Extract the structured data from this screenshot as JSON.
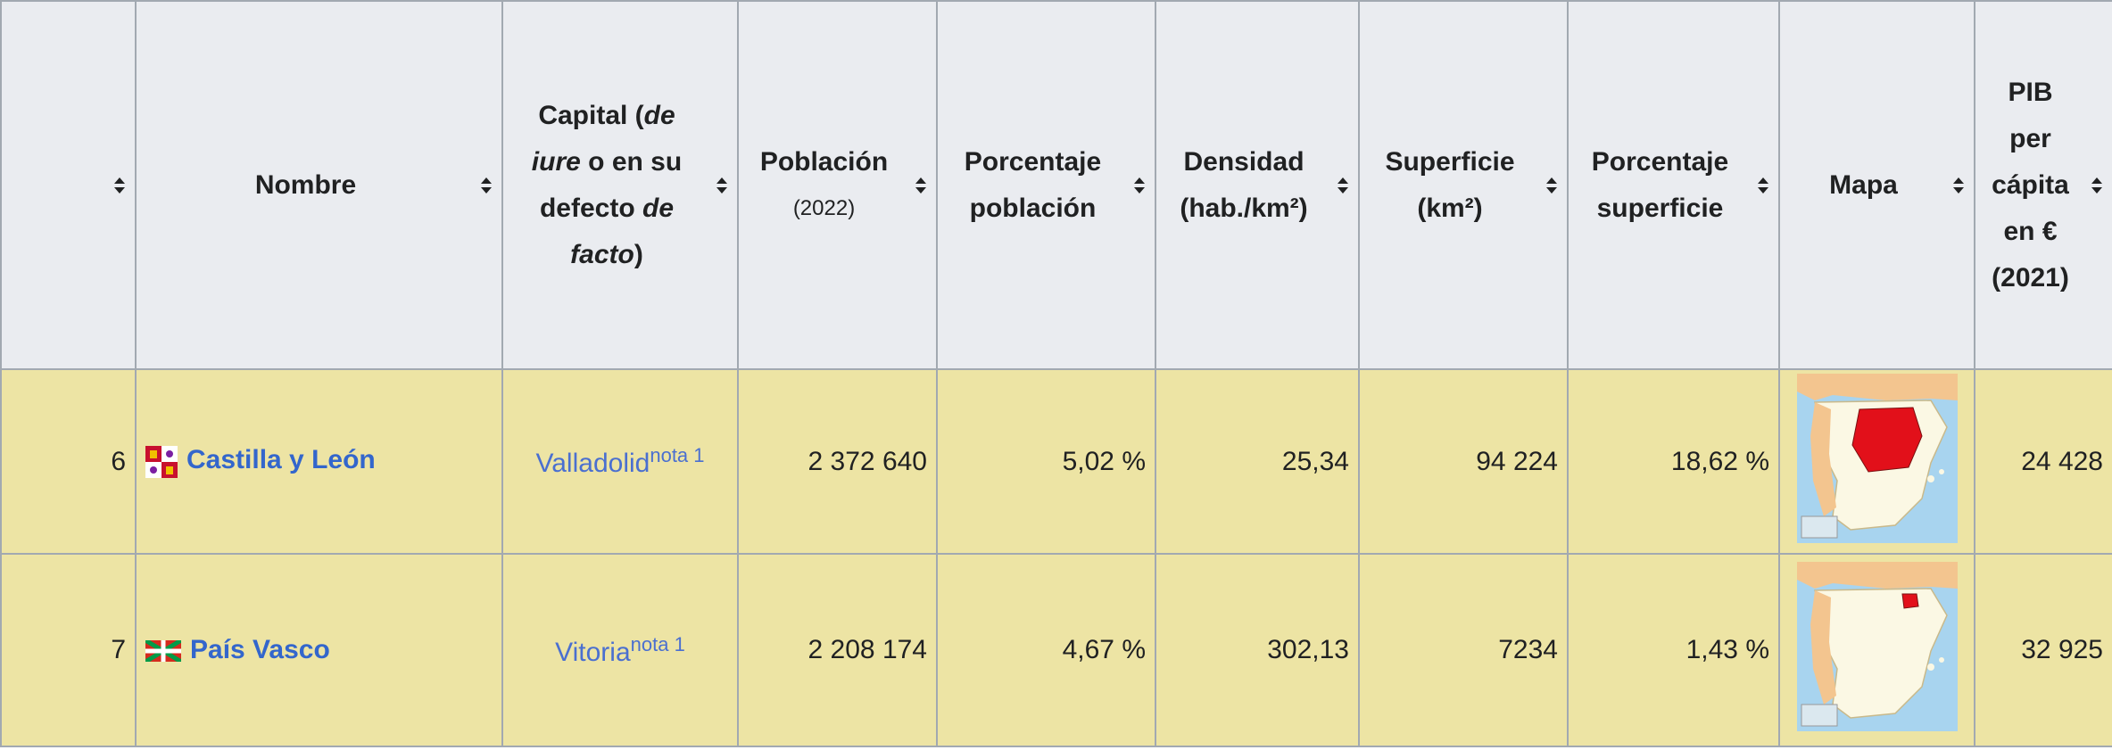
{
  "header": {
    "columns": [
      [
        {
          "text": "Nombre"
        }
      ],
      [
        {
          "text": "Capital ("
        },
        {
          "text": "de iure",
          "style": "italic"
        },
        {
          "text": " o en su defecto "
        },
        {
          "text": "de facto",
          "style": "italic"
        },
        {
          "text": ")"
        }
      ],
      [
        {
          "text": "Población"
        },
        {
          "text": "(2022)",
          "style": "small-line"
        }
      ],
      [
        {
          "text": "Porcentaje población"
        }
      ],
      [
        {
          "text": "Densidad"
        },
        {
          "text": "(hab./km²)",
          "style": "line"
        }
      ],
      [
        {
          "text": "Superficie"
        },
        {
          "text": "(km²)",
          "style": "line"
        }
      ],
      [
        {
          "text": "Porcentaje superficie"
        }
      ],
      [
        {
          "text": "Mapa"
        }
      ],
      [
        {
          "text": "PIB per cápita en € (2021)"
        }
      ]
    ]
  },
  "table": {
    "rows": [
      {
        "rank": 6,
        "name": "Castilla y León",
        "capital": "Valladolid",
        "note": "nota 1",
        "population": "2 372 640",
        "population_pct": "5,02 %",
        "density": "25,34",
        "area": "94 224",
        "area_pct": "18,62 %",
        "gdp_per_capita": "24 428",
        "flag": "castilla",
        "map": "castilla"
      },
      {
        "rank": 7,
        "name": "País Vasco",
        "capital": "Vitoria",
        "note": "nota 1",
        "population": "2 208 174",
        "population_pct": "4,67 %",
        "density": "302,13",
        "area": "7234",
        "area_pct": "1,43 %",
        "gdp_per_capita": "32 925",
        "flag": "euskadi",
        "map": "euskadi"
      }
    ]
  }
}
